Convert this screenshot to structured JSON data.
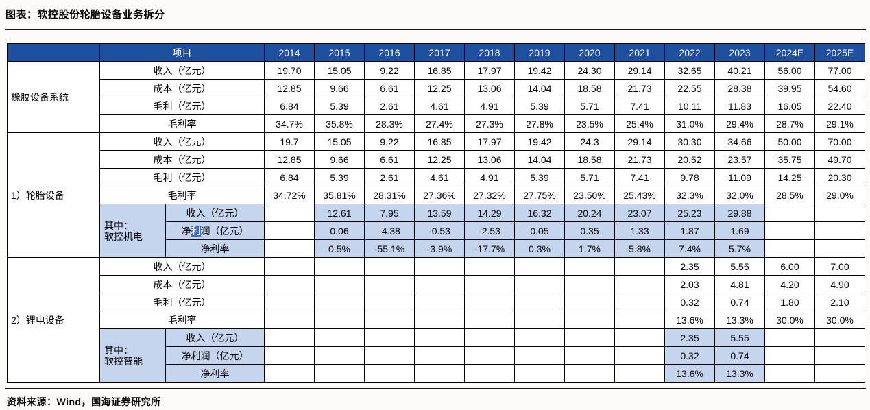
{
  "page": {
    "title": "图表：软控股份轮胎设备业务拆分",
    "source": "资料来源：Wind，国海证券研究所"
  },
  "colors": {
    "header_blue": "#1f509f",
    "sub_row_blue": "#c5d5ee",
    "selection_blue": "#3d6cc0"
  },
  "table": {
    "header": {
      "item": "项目",
      "years": [
        "2014",
        "2015",
        "2016",
        "2017",
        "2018",
        "2019",
        "2020",
        "2021",
        "2022",
        "2023",
        "2024E",
        "2025E"
      ]
    },
    "groups": [
      {
        "name": "橡胶设备系统",
        "rows": [
          {
            "label": "收入（亿元）",
            "values": [
              "19.70",
              "15.05",
              "9.22",
              "16.85",
              "17.97",
              "19.42",
              "24.30",
              "29.14",
              "32.65",
              "40.21",
              "56.00",
              "77.00"
            ]
          },
          {
            "label": "成本（亿元）",
            "values": [
              "12.85",
              "9.66",
              "6.61",
              "12.25",
              "13.06",
              "14.04",
              "18.58",
              "21.73",
              "22.55",
              "28.38",
              "39.95",
              "54.60"
            ]
          },
          {
            "label": "毛利（亿元）",
            "values": [
              "6.84",
              "5.39",
              "2.61",
              "4.61",
              "4.91",
              "5.39",
              "5.71",
              "7.41",
              "10.11",
              "11.83",
              "16.05",
              "22.40"
            ]
          },
          {
            "label": "毛利率",
            "values": [
              "34.7%",
              "35.8%",
              "28.3%",
              "27.4%",
              "27.3%",
              "27.8%",
              "23.5%",
              "25.4%",
              "31.0%",
              "29.4%",
              "28.7%",
              "29.1%"
            ]
          }
        ]
      },
      {
        "name": "1）轮胎设备",
        "rows": [
          {
            "label": "收入（亿元）",
            "values": [
              "19.7",
              "15.05",
              "9.22",
              "16.85",
              "17.97",
              "19.42",
              "24.3",
              "29.14",
              "30.30",
              "34.66",
              "50.00",
              "70.00"
            ]
          },
          {
            "label": "成本（亿元）",
            "values": [
              "12.85",
              "9.66",
              "6.61",
              "12.25",
              "13.06",
              "14.04",
              "18.58",
              "21.73",
              "20.52",
              "23.57",
              "35.75",
              "49.70"
            ]
          },
          {
            "label": "毛利（亿元）",
            "values": [
              "6.84",
              "5.39",
              "2.61",
              "4.61",
              "4.91",
              "5.39",
              "5.71",
              "7.41",
              "9.78",
              "11.09",
              "14.25",
              "20.30"
            ]
          },
          {
            "label": "毛利率",
            "values": [
              "34.72%",
              "35.81%",
              "28.31%",
              "27.36%",
              "27.32%",
              "27.75%",
              "23.50%",
              "25.43%",
              "32.3%",
              "32.0%",
              "28.5%",
              "29.0%"
            ]
          }
        ],
        "sub": {
          "name_lines": [
            "其中：",
            "软控机电"
          ],
          "rows": [
            {
              "label": "收入（亿元）",
              "values": [
                "",
                "12.61",
                "7.95",
                "13.59",
                "14.29",
                "16.32",
                "20.24",
                "23.07",
                "25.23",
                "29.88",
                "",
                ""
              ]
            },
            {
              "label": "净利润（亿元）",
              "selected_char": "利",
              "values": [
                "",
                "0.06",
                "-4.38",
                "-0.53",
                "-2.53",
                "0.05",
                "0.35",
                "1.33",
                "1.87",
                "1.69",
                "",
                ""
              ]
            },
            {
              "label": "净利率",
              "values": [
                "",
                "0.5%",
                "-55.1%",
                "-3.9%",
                "-17.7%",
                "0.3%",
                "1.7%",
                "5.8%",
                "7.4%",
                "5.7%",
                "",
                ""
              ]
            }
          ]
        }
      },
      {
        "name": "2）锂电设备",
        "rows": [
          {
            "label": "收入（亿元）",
            "values": [
              "",
              "",
              "",
              "",
              "",
              "",
              "",
              "",
              "2.35",
              "5.55",
              "6.00",
              "7.00"
            ]
          },
          {
            "label": "成本（亿元）",
            "values": [
              "",
              "",
              "",
              "",
              "",
              "",
              "",
              "",
              "2.03",
              "4.81",
              "4.20",
              "4.90"
            ]
          },
          {
            "label": "毛利（亿元）",
            "values": [
              "",
              "",
              "",
              "",
              "",
              "",
              "",
              "",
              "0.32",
              "0.74",
              "1.80",
              "2.10"
            ]
          },
          {
            "label": "毛利率",
            "values": [
              "",
              "",
              "",
              "",
              "",
              "",
              "",
              "",
              "13.6%",
              "13.3%",
              "30.0%",
              "30.0%"
            ]
          }
        ],
        "sub": {
          "name_lines": [
            "其中：",
            "软控智能"
          ],
          "rows": [
            {
              "label": "收入（亿元）",
              "values": [
                "",
                "",
                "",
                "",
                "",
                "",
                "",
                "",
                "2.35",
                "5.55",
                "",
                ""
              ]
            },
            {
              "label": "净利润（亿元）",
              "values": [
                "",
                "",
                "",
                "",
                "",
                "",
                "",
                "",
                "0.32",
                "0.74",
                "",
                ""
              ]
            },
            {
              "label": "净利率",
              "values": [
                "",
                "",
                "",
                "",
                "",
                "",
                "",
                "",
                "13.6%",
                "13.3%",
                "",
                ""
              ]
            }
          ]
        }
      }
    ]
  }
}
